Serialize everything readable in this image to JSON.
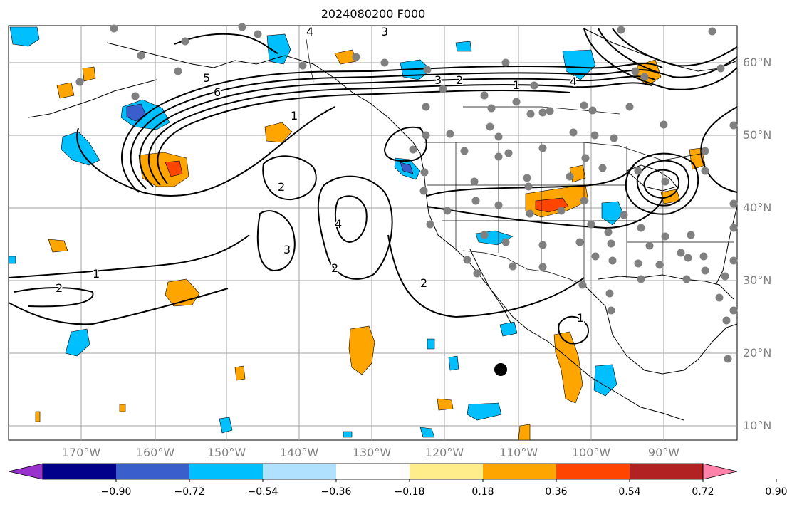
{
  "title": "2024080200 F000",
  "map": {
    "lat_labels": [
      "60°N",
      "50°N",
      "40°N",
      "30°N",
      "20°N",
      "10°N"
    ],
    "lon_labels": [
      "170°W",
      "160°W",
      "150°W",
      "140°W",
      "130°W",
      "120°W",
      "110°W",
      "100°W",
      "90°W"
    ],
    "contour_labels": [
      "1",
      "2",
      "3",
      "4",
      "5",
      "6",
      "1",
      "2",
      "3",
      "4",
      "1",
      "2",
      "3",
      "4",
      "2",
      "1",
      "2"
    ]
  },
  "colorbar": {
    "colors": [
      "#9932cc",
      "#00008b",
      "#3a5fcd",
      "#00bfff",
      "#b0e2ff",
      "#ffffff",
      "#ffec8b",
      "#ffa500",
      "#ff4500",
      "#b22222",
      "#ff82ab"
    ],
    "tick_labels": [
      "−0.90",
      "−0.72",
      "−0.54",
      "−0.36",
      "−0.18",
      "0.18",
      "0.36",
      "0.54",
      "0.72",
      "0.90"
    ]
  }
}
